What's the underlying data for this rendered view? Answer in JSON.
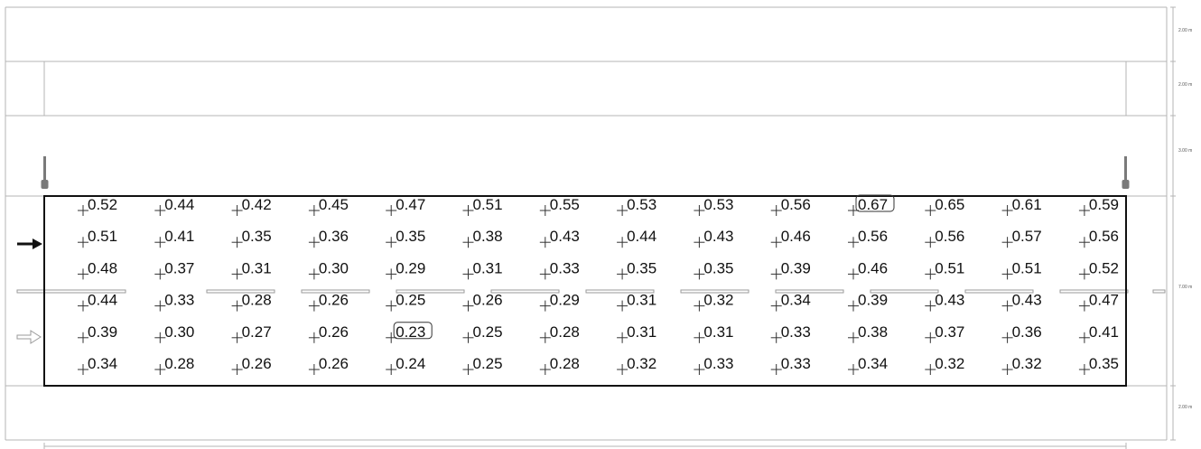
{
  "dimensions": {
    "labels": [
      "2.00 m",
      "2.00 m",
      "3.00 m",
      "7.00 m",
      "2.00 m"
    ]
  },
  "grid": {
    "rows": [
      [
        "0.52",
        "0.44",
        "0.42",
        "0.45",
        "0.47",
        "0.51",
        "0.55",
        "0.53",
        "0.53",
        "0.56",
        "0.67",
        "0.65",
        "0.61",
        "0.59"
      ],
      [
        "0.51",
        "0.41",
        "0.35",
        "0.36",
        "0.35",
        "0.38",
        "0.43",
        "0.44",
        "0.43",
        "0.46",
        "0.56",
        "0.56",
        "0.57",
        "0.56"
      ],
      [
        "0.48",
        "0.37",
        "0.31",
        "0.30",
        "0.29",
        "0.31",
        "0.33",
        "0.35",
        "0.35",
        "0.39",
        "0.46",
        "0.51",
        "0.51",
        "0.52"
      ],
      [
        "0.44",
        "0.33",
        "0.28",
        "0.26",
        "0.25",
        "0.26",
        "0.29",
        "0.31",
        "0.32",
        "0.34",
        "0.39",
        "0.43",
        "0.43",
        "0.47"
      ],
      [
        "0.39",
        "0.30",
        "0.27",
        "0.26",
        "0.23",
        "0.25",
        "0.28",
        "0.31",
        "0.31",
        "0.33",
        "0.38",
        "0.37",
        "0.36",
        "0.41"
      ],
      [
        "0.34",
        "0.28",
        "0.26",
        "0.26",
        "0.24",
        "0.25",
        "0.28",
        "0.32",
        "0.33",
        "0.33",
        "0.34",
        "0.32",
        "0.32",
        "0.35"
      ]
    ],
    "max_value": "0.67",
    "min_value": "0.23"
  },
  "colors": {
    "line": "#b4b4b4",
    "frame": "#111111",
    "luminaire": "#7a7a7a"
  }
}
